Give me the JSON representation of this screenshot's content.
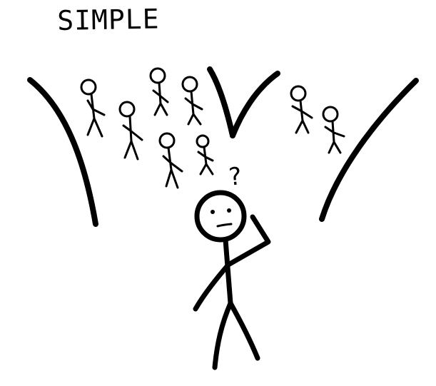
{
  "drawing": {
    "title": "SIMPLE",
    "question_mark": "?",
    "ink_color": "#000000",
    "background_color": "#ffffff",
    "crowd_count": 8
  }
}
